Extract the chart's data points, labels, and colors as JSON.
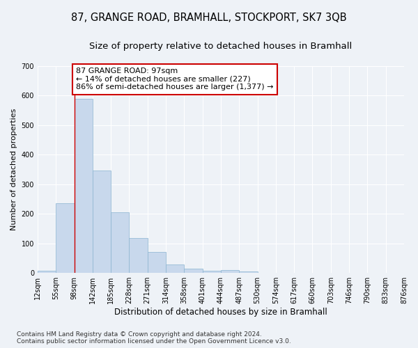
{
  "title1": "87, GRANGE ROAD, BRAMHALL, STOCKPORT, SK7 3QB",
  "title2": "Size of property relative to detached houses in Bramhall",
  "xlabel": "Distribution of detached houses by size in Bramhall",
  "ylabel": "Number of detached properties",
  "bar_values": [
    7,
    237,
    590,
    347,
    205,
    118,
    71,
    28,
    15,
    8,
    10,
    6,
    0,
    0,
    0,
    0,
    0,
    0,
    0,
    0
  ],
  "bar_labels": [
    "12sqm",
    "55sqm",
    "98sqm",
    "142sqm",
    "185sqm",
    "228sqm",
    "271sqm",
    "314sqm",
    "358sqm",
    "401sqm",
    "444sqm",
    "487sqm",
    "530sqm",
    "574sqm",
    "617sqm",
    "660sqm",
    "703sqm",
    "746sqm",
    "790sqm",
    "833sqm",
    "876sqm"
  ],
  "bar_color": "#c8d8ec",
  "bar_edge_color": "#8ab4d0",
  "property_line_x": 2,
  "annotation_text": "87 GRANGE ROAD: 97sqm\n← 14% of detached houses are smaller (227)\n86% of semi-detached houses are larger (1,377) →",
  "annotation_box_color": "#ffffff",
  "annotation_box_edge_color": "#cc0000",
  "ylim": [
    0,
    700
  ],
  "yticks": [
    0,
    100,
    200,
    300,
    400,
    500,
    600,
    700
  ],
  "property_line_color": "#cc0000",
  "background_color": "#eef2f7",
  "grid_color": "#ffffff",
  "footer_text": "Contains HM Land Registry data © Crown copyright and database right 2024.\nContains public sector information licensed under the Open Government Licence v3.0.",
  "title1_fontsize": 10.5,
  "title2_fontsize": 9.5,
  "xlabel_fontsize": 8.5,
  "ylabel_fontsize": 8,
  "tick_fontsize": 7,
  "annotation_fontsize": 8,
  "footer_fontsize": 6.5
}
